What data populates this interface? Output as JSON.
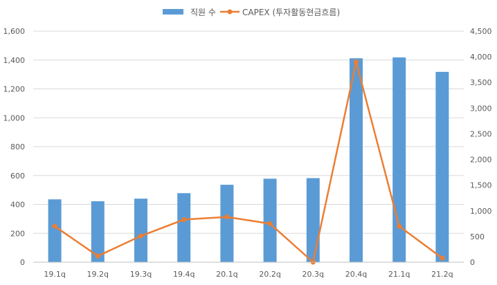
{
  "chart_data": {
    "type": "bar",
    "categories": [
      "19.1q",
      "19.2q",
      "19.3q",
      "19.4q",
      "20.1q",
      "20.2q",
      "20.3q",
      "20.4q",
      "21.1q",
      "21.2q"
    ],
    "series": [
      {
        "name": "직원 수",
        "type": "bar",
        "axis": "left",
        "color": "#5B9BD5",
        "values": [
          435,
          422,
          440,
          478,
          536,
          578,
          582,
          1412,
          1418,
          1318
        ]
      },
      {
        "name": "CAPEX (투자활동현금흐름)",
        "type": "line",
        "axis": "right",
        "color": "#ED7D31",
        "values": [
          700,
          120,
          510,
          830,
          880,
          750,
          0,
          3900,
          700,
          80
        ]
      }
    ],
    "y_left": {
      "range": [
        0,
        1600
      ],
      "ticks": [
        0,
        200,
        400,
        600,
        800,
        1000,
        1200,
        1400,
        1600
      ],
      "tick_labels": [
        "0",
        "200",
        "400",
        "600",
        "800",
        "1,000",
        "1,200",
        "1,400",
        "1,600"
      ]
    },
    "y_right": {
      "range": [
        0,
        4500
      ],
      "ticks": [
        0,
        500,
        1000,
        1500,
        2000,
        2500,
        3000,
        3500,
        4000,
        4500
      ],
      "tick_labels": [
        "0",
        "500",
        "1,000",
        "1,500",
        "2,000",
        "2,500",
        "3,000",
        "3,500",
        "4,000",
        "4,500"
      ]
    },
    "grid": true,
    "legend_position": "top-center",
    "title": "",
    "xlabel": "",
    "ylabel": ""
  }
}
